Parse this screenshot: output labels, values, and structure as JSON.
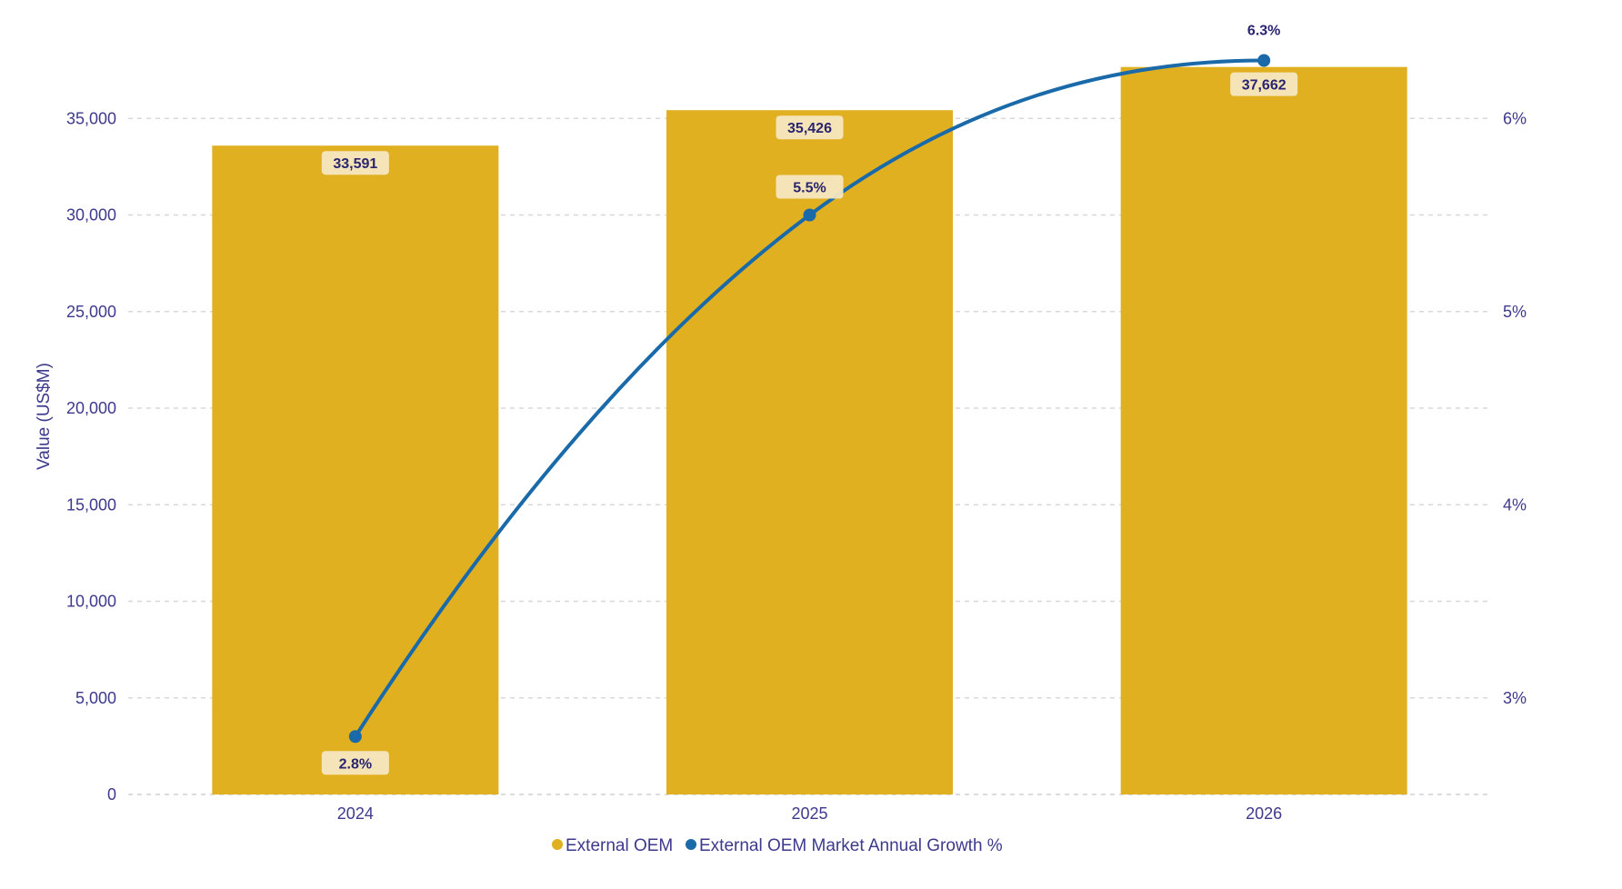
{
  "chart_data": {
    "type": "bar",
    "categories": [
      "2024",
      "2025",
      "2026"
    ],
    "series": [
      {
        "name": "External OEM",
        "type": "bar",
        "axis": "left",
        "color": "#E0B020",
        "values": [
          33591,
          35426,
          37662
        ],
        "labels": [
          "33,591",
          "35,426",
          "37,662"
        ]
      },
      {
        "name": "External OEM Market Annual Growth %",
        "type": "line",
        "axis": "right",
        "color": "#1A6AAA",
        "values": [
          2.8,
          5.5,
          6.3
        ],
        "labels": [
          "2.8%",
          "5.5%",
          "6.3%"
        ]
      }
    ],
    "ylabel": "Value (US$M)",
    "ylim": [
      0,
      40000
    ],
    "yticks": [
      0,
      5000,
      10000,
      15000,
      20000,
      25000,
      30000,
      35000
    ],
    "ytick_labels": [
      "0",
      "5,000",
      "10,000",
      "15,000",
      "20,000",
      "25,000",
      "30,000",
      "35,000"
    ],
    "y2lim": [
      2.5,
      6.5
    ],
    "y2ticks": [
      3,
      4,
      5,
      6
    ],
    "y2tick_labels": [
      "3%",
      "4%",
      "5%",
      "6%"
    ],
    "grid": true,
    "legend_position": "bottom-center"
  }
}
